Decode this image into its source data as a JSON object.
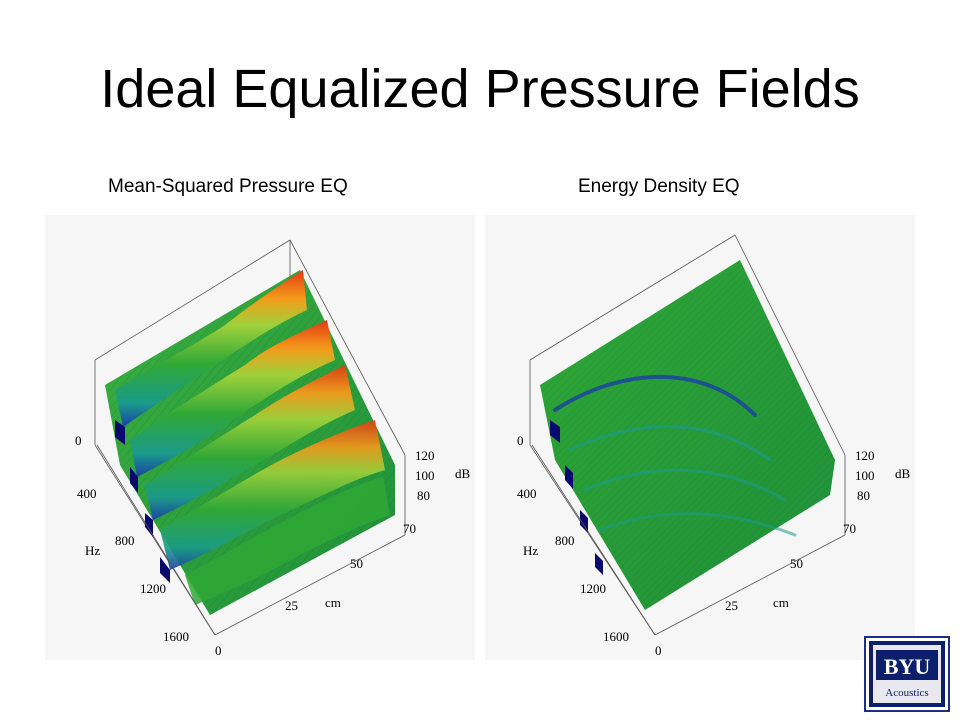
{
  "slide": {
    "title": "Ideal Equalized Pressure Fields"
  },
  "plots": [
    {
      "subtitle": "Mean-Squared Pressure EQ",
      "freq_label": "Hz",
      "freq_ticks": [
        "0",
        "400",
        "800",
        "1200",
        "1600"
      ],
      "pos_label": "cm",
      "pos_ticks": [
        "0",
        "25",
        "50",
        "70"
      ],
      "level_label": "dB",
      "level_ticks": [
        "120",
        "100",
        "80"
      ]
    },
    {
      "subtitle": "Energy Density EQ",
      "freq_label": "Hz",
      "freq_ticks": [
        "0",
        "400",
        "800",
        "1200",
        "1600"
      ],
      "pos_label": "cm",
      "pos_ticks": [
        "0",
        "25",
        "50",
        "70"
      ],
      "level_label": "dB",
      "level_ticks": [
        "120",
        "100",
        "80"
      ]
    }
  ],
  "logo": {
    "text": "BYU",
    "subtext": "Acoustics",
    "colors": {
      "navy": "#0b1f6b",
      "frame": "#1c2d8c"
    }
  },
  "colors": {
    "surface_green": "#2fa836",
    "peak_red": "#e23a14",
    "peak_orange": "#f59a1a",
    "valley_blue": "#1a3fa8",
    "deep_navy": "#0a0a6e"
  }
}
